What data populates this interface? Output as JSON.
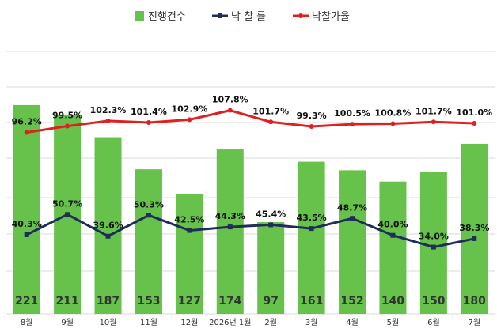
{
  "chart_data": {
    "type": "bar",
    "categories": [
      "8월",
      "9월",
      "10월",
      "11월",
      "12월",
      "2026년 1월",
      "2월",
      "3월",
      "4월",
      "5월",
      "6월",
      "7월"
    ],
    "legend_position": "top-center",
    "grid": true,
    "series": [
      {
        "name": "진행건수",
        "type": "bar",
        "color": "#66c24a",
        "values": [
          221,
          211,
          187,
          153,
          127,
          174,
          97,
          161,
          152,
          140,
          150,
          180
        ]
      },
      {
        "name": "낙 찰 률",
        "type": "line",
        "color": "#1f2d5a",
        "values": [
          40.3,
          50.7,
          39.6,
          50.3,
          42.5,
          44.3,
          45.4,
          43.5,
          48.7,
          40.0,
          34.0,
          38.3
        ],
        "labels": [
          "40.3%",
          "50.7%",
          "39.6%",
          "50.3%",
          "42.5%",
          "44.3%",
          "45.4%",
          "43.5%",
          "48.7%",
          "40.0%",
          "34.0%",
          "38.3%"
        ]
      },
      {
        "name": "낙찰가율",
        "type": "line",
        "color": "#e02020",
        "values": [
          96.2,
          99.5,
          102.3,
          101.4,
          102.9,
          107.8,
          101.7,
          99.3,
          100.5,
          100.8,
          101.7,
          101.0
        ],
        "labels": [
          "96.2%",
          "99.5%",
          "102.3%",
          "101.4%",
          "102.9%",
          "107.8%",
          "101.7%",
          "99.3%",
          "100.5%",
          "100.8%",
          "101.7%",
          "101.0%"
        ]
      }
    ]
  }
}
